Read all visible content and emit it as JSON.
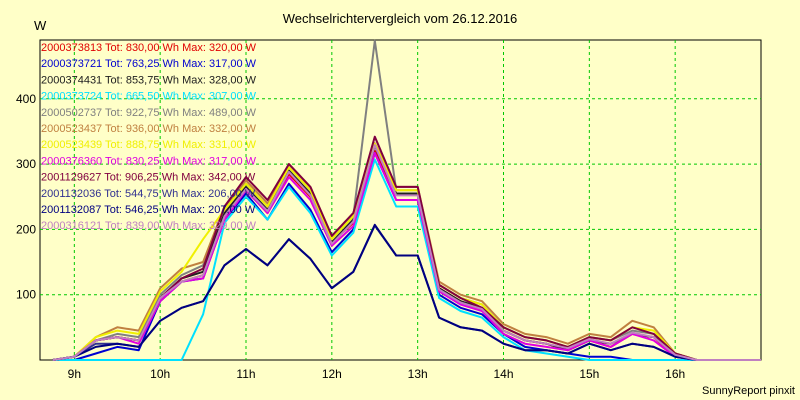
{
  "chart_data": {
    "type": "line",
    "title": "Wechselrichtervergleich vom 26.12.2016",
    "yunit": "W",
    "xlabel": "",
    "ylabel": "",
    "x_ticks": [
      "9h",
      "10h",
      "11h",
      "12h",
      "13h",
      "14h",
      "15h",
      "16h"
    ],
    "y_ticks": [
      100,
      200,
      300,
      400
    ],
    "ylim": [
      0,
      490
    ],
    "xlim": [
      8.6,
      17.0
    ],
    "grid": true,
    "x": [
      8.75,
      9.0,
      9.25,
      9.5,
      9.75,
      10.0,
      10.25,
      10.5,
      10.75,
      11.0,
      11.25,
      11.5,
      11.75,
      12.0,
      12.25,
      12.5,
      12.75,
      13.0,
      13.25,
      13.5,
      13.75,
      14.0,
      14.25,
      14.5,
      14.75,
      15.0,
      15.25,
      15.5,
      15.75,
      16.0,
      16.25,
      16.5,
      16.75,
      17.0
    ],
    "series": [
      {
        "name": "2000373813",
        "tot": "830,00",
        "max": "320,00",
        "color": "#e00000",
        "values": [
          0,
          5,
          30,
          35,
          30,
          90,
          120,
          130,
          220,
          260,
          225,
          285,
          250,
          180,
          210,
          320,
          255,
          255,
          110,
          90,
          75,
          45,
          30,
          25,
          15,
          30,
          20,
          40,
          35,
          5,
          0,
          0,
          0,
          0
        ]
      },
      {
        "name": "2000373721",
        "tot": "763,25",
        "max": "317,00",
        "color": "#0000d0",
        "values": [
          0,
          0,
          10,
          20,
          15,
          90,
          120,
          125,
          215,
          255,
          215,
          270,
          230,
          165,
          200,
          317,
          245,
          245,
          100,
          80,
          70,
          40,
          20,
          15,
          10,
          5,
          5,
          0,
          0,
          0,
          0,
          0,
          0,
          0
        ]
      },
      {
        "name": "2000374431",
        "tot": "853,75",
        "max": "328,00",
        "color": "#202020",
        "values": [
          0,
          5,
          30,
          35,
          30,
          95,
          125,
          135,
          225,
          265,
          230,
          290,
          255,
          180,
          215,
          328,
          255,
          255,
          110,
          90,
          80,
          45,
          30,
          25,
          15,
          30,
          25,
          40,
          35,
          10,
          0,
          0,
          0,
          0
        ]
      },
      {
        "name": "2000373724",
        "tot": "665,50",
        "max": "307,00",
        "color": "#00e0ff",
        "values": [
          0,
          0,
          0,
          0,
          0,
          0,
          0,
          70,
          210,
          250,
          215,
          265,
          225,
          160,
          195,
          307,
          235,
          235,
          95,
          75,
          65,
          35,
          15,
          10,
          5,
          0,
          0,
          0,
          0,
          0,
          0,
          0,
          0,
          0
        ]
      },
      {
        "name": "2000502737",
        "tot": "922,75",
        "max": "489,00",
        "color": "#808080",
        "values": [
          0,
          5,
          30,
          40,
          35,
          100,
          130,
          145,
          235,
          270,
          235,
          295,
          260,
          185,
          220,
          489,
          260,
          260,
          115,
          95,
          85,
          50,
          35,
          30,
          20,
          35,
          30,
          45,
          40,
          10,
          0,
          0,
          0,
          0
        ]
      },
      {
        "name": "2000523437",
        "tot": "936,00",
        "max": "332,00",
        "color": "#c08040",
        "values": [
          0,
          5,
          35,
          50,
          45,
          110,
          140,
          150,
          235,
          275,
          240,
          300,
          265,
          190,
          225,
          332,
          265,
          265,
          120,
          100,
          90,
          55,
          40,
          35,
          25,
          40,
          35,
          60,
          50,
          10,
          0,
          0,
          0,
          0
        ]
      },
      {
        "name": "2000523439",
        "tot": "888,75",
        "max": "331,00",
        "color": "#f0f000",
        "values": [
          0,
          5,
          35,
          45,
          40,
          105,
          135,
          185,
          230,
          270,
          235,
          295,
          260,
          185,
          220,
          331,
          260,
          260,
          115,
          95,
          85,
          50,
          35,
          30,
          20,
          35,
          30,
          50,
          45,
          10,
          0,
          0,
          0,
          0
        ]
      },
      {
        "name": "2000376360",
        "tot": "830,25",
        "max": "317,00",
        "color": "#e000e0",
        "values": [
          0,
          5,
          30,
          35,
          25,
          90,
          120,
          125,
          215,
          260,
          225,
          280,
          245,
          175,
          205,
          317,
          245,
          245,
          105,
          85,
          75,
          40,
          25,
          20,
          15,
          30,
          20,
          40,
          30,
          5,
          0,
          0,
          0,
          0
        ]
      },
      {
        "name": "2001129627",
        "tot": "906,25",
        "max": "342,00",
        "color": "#800040",
        "values": [
          0,
          5,
          30,
          35,
          30,
          95,
          125,
          140,
          235,
          280,
          245,
          300,
          265,
          190,
          225,
          342,
          265,
          265,
          115,
          95,
          80,
          50,
          35,
          30,
          20,
          35,
          30,
          50,
          40,
          10,
          0,
          0,
          0,
          0
        ]
      },
      {
        "name": "2001132036",
        "tot": "544,75",
        "max": "206,00",
        "color": "#303090",
        "values": [
          0,
          5,
          25,
          25,
          20,
          60,
          80,
          90,
          145,
          170,
          145,
          185,
          155,
          110,
          135,
          206,
          160,
          160,
          65,
          50,
          45,
          25,
          15,
          15,
          10,
          25,
          15,
          25,
          20,
          5,
          0,
          0,
          0,
          0
        ]
      },
      {
        "name": "2001132087",
        "tot": "546,25",
        "max": "207,00",
        "color": "#000080",
        "values": [
          0,
          5,
          20,
          25,
          20,
          60,
          80,
          90,
          145,
          170,
          145,
          185,
          155,
          110,
          135,
          207,
          160,
          160,
          65,
          50,
          45,
          25,
          15,
          15,
          10,
          25,
          15,
          25,
          20,
          5,
          0,
          0,
          0,
          0
        ]
      },
      {
        "name": "2000316121",
        "tot": "839,00",
        "max": "329,00",
        "color": "#c080c0",
        "values": [
          0,
          5,
          30,
          35,
          30,
          95,
          120,
          130,
          220,
          262,
          228,
          288,
          252,
          178,
          212,
          329,
          252,
          252,
          108,
          88,
          78,
          45,
          30,
          25,
          18,
          32,
          25,
          42,
          35,
          8,
          0,
          0,
          0,
          0
        ]
      }
    ],
    "legend_labels": [
      "2000373813 Tot: 830,00 Wh Max: 320,00 W",
      "2000373721 Tot: 763,25 Wh Max: 317,00 W",
      "2000374431 Tot: 853,75 Wh Max: 328,00 W",
      "2000373724 Tot: 665,50 Wh Max: 307,00 W",
      "2000502737 Tot: 922,75 Wh Max: 489,00 W",
      "2000523437 Tot: 936,00 Wh Max: 332,00 W",
      "2000523439 Tot: 888,75 Wh Max: 331,00 W",
      "2000376360 Tot: 830,25 Wh Max: 317,00 W",
      "2001129627 Tot: 906,25 Wh Max: 342,00 W",
      "2001132036 Tot: 544,75 Wh Max: 206,00 W",
      "2001132087 Tot: 546,25 Wh Max: 207,00 W",
      "2000316121 Tot: 839,00 Wh Max: 329,00 W"
    ],
    "legend_position": "top-left"
  },
  "footer": "SunnyReport pinxit",
  "colors": {
    "background": "#ffffc8",
    "grid": "#00c800",
    "axis": "#000000"
  }
}
